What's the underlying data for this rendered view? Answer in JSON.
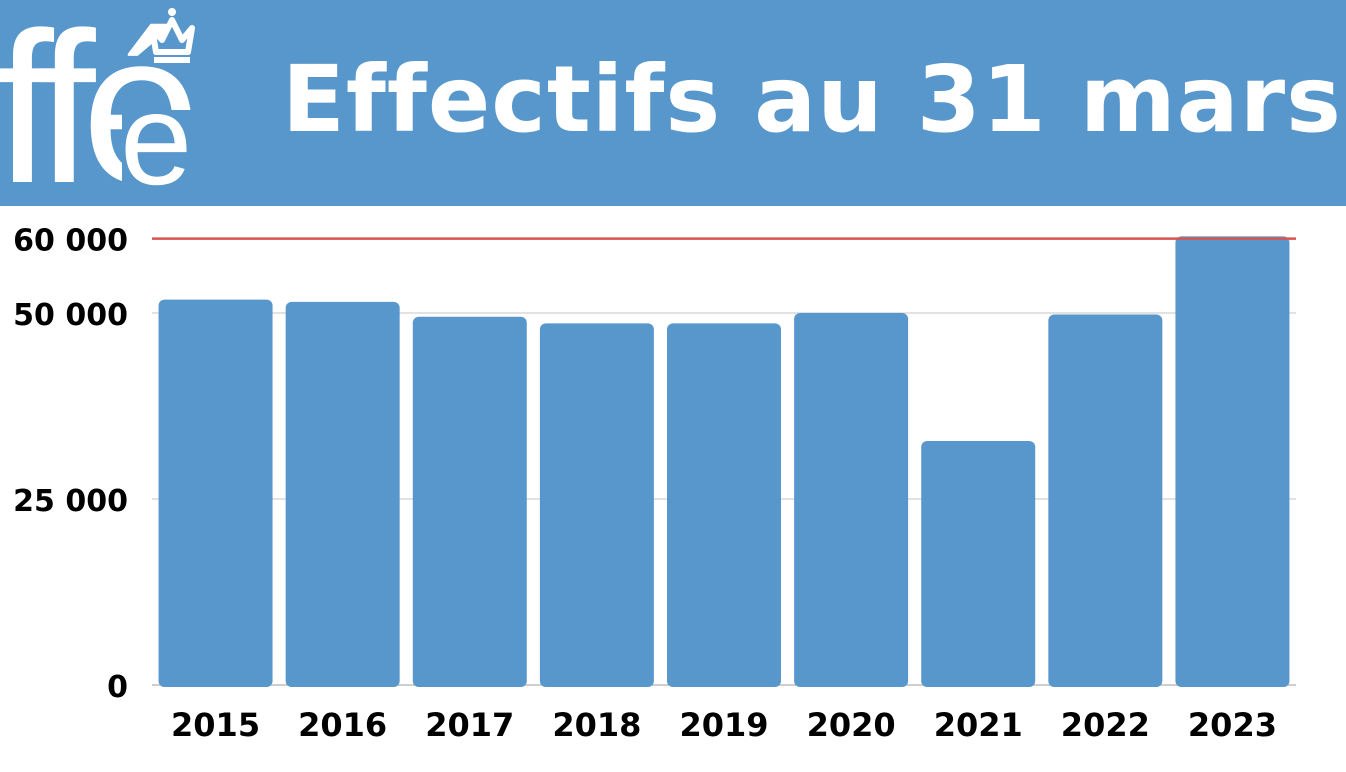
{
  "header": {
    "title": "Effectifs au 31 mars",
    "logo_text": "ffé",
    "logo_icon": "crown-icon",
    "background": "#5897cc"
  },
  "chart_data": {
    "type": "bar",
    "categories": [
      "2015",
      "2016",
      "2017",
      "2018",
      "2019",
      "2020",
      "2021",
      "2022",
      "2023"
    ],
    "values": [
      51800,
      51500,
      49500,
      48600,
      48600,
      50000,
      32800,
      49800,
      60300
    ],
    "y_ticks": [
      0,
      25000,
      50000,
      60000
    ],
    "y_tick_labels": [
      "0",
      "25 000",
      "50 000",
      "60 000"
    ],
    "ylim": [
      0,
      62000
    ],
    "reference_line": {
      "value": 60000,
      "color": "#d9534f"
    },
    "grid": true,
    "bar_color": "#5897cc",
    "title": "",
    "xlabel": "",
    "ylabel": ""
  }
}
